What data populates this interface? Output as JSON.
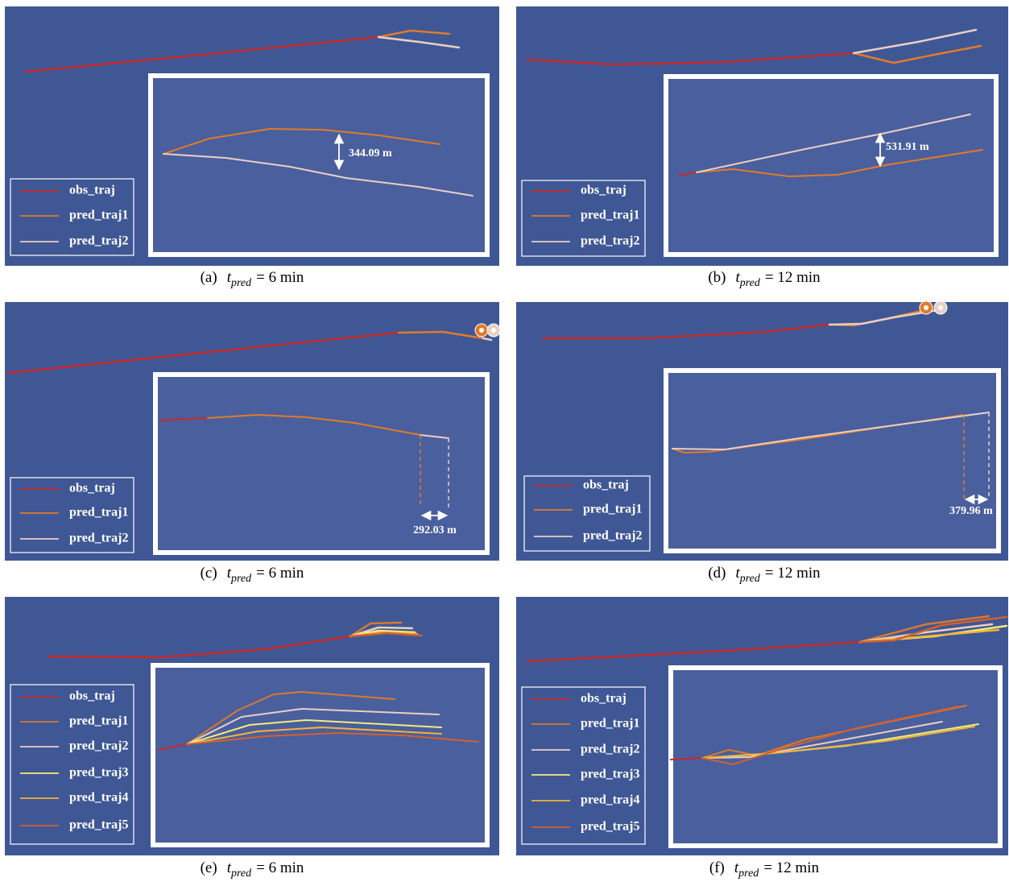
{
  "panels": [
    {
      "label": "(a)",
      "caption_var": "t",
      "caption_sub": "pred",
      "caption_rest": "= 6 min",
      "legend": [
        {
          "name": "obs_traj",
          "color": "#c62a2a"
        },
        {
          "name": "pred_traj1",
          "color": "#e07b2a"
        },
        {
          "name": "pred_traj2",
          "color": "#e9cfc4"
        }
      ],
      "distance": "344.09 m"
    },
    {
      "label": "(b)",
      "caption_var": "t",
      "caption_sub": "pred",
      "caption_rest": "= 12 min",
      "legend": [
        {
          "name": "obs_traj",
          "color": "#c62a2a"
        },
        {
          "name": "pred_traj1",
          "color": "#e07b2a"
        },
        {
          "name": "pred_traj2",
          "color": "#e9cfc4"
        }
      ],
      "distance": "531.91 m"
    },
    {
      "label": "(c)",
      "caption_var": "t",
      "caption_sub": "pred",
      "caption_rest": "= 6 min",
      "legend": [
        {
          "name": "obs_traj",
          "color": "#c62a2a"
        },
        {
          "name": "pred_traj1",
          "color": "#e07b2a"
        },
        {
          "name": "pred_traj2",
          "color": "#e9cfc4"
        }
      ],
      "distance": "292.03 m"
    },
    {
      "label": "(d)",
      "caption_var": "t",
      "caption_sub": "pred",
      "caption_rest": "= 12 min",
      "legend": [
        {
          "name": "obs_traj",
          "color": "#c62a2a"
        },
        {
          "name": "pred_traj1",
          "color": "#e07b2a"
        },
        {
          "name": "pred_traj2",
          "color": "#e9cfc4"
        }
      ],
      "distance": "379.96 m"
    },
    {
      "label": "(e)",
      "caption_var": "t",
      "caption_sub": "pred",
      "caption_rest": "= 6 min",
      "legend": [
        {
          "name": "obs_traj",
          "color": "#c62a2a"
        },
        {
          "name": "pred_traj1",
          "color": "#d9792e"
        },
        {
          "name": "pred_traj2",
          "color": "#e9cfc4"
        },
        {
          "name": "pred_traj3",
          "color": "#f3ec7a"
        },
        {
          "name": "pred_traj4",
          "color": "#f2b43a"
        },
        {
          "name": "pred_traj5",
          "color": "#d4602c"
        }
      ]
    },
    {
      "label": "(f)",
      "caption_var": "t",
      "caption_sub": "pred",
      "caption_rest": "= 12 min",
      "legend": [
        {
          "name": "obs_traj",
          "color": "#c62a2a"
        },
        {
          "name": "pred_traj1",
          "color": "#d9792e"
        },
        {
          "name": "pred_traj2",
          "color": "#e9cfc4"
        },
        {
          "name": "pred_traj3",
          "color": "#f3ec7a"
        },
        {
          "name": "pred_traj4",
          "color": "#f2b43a"
        },
        {
          "name": "pred_traj5",
          "color": "#d4602c"
        }
      ]
    }
  ]
}
